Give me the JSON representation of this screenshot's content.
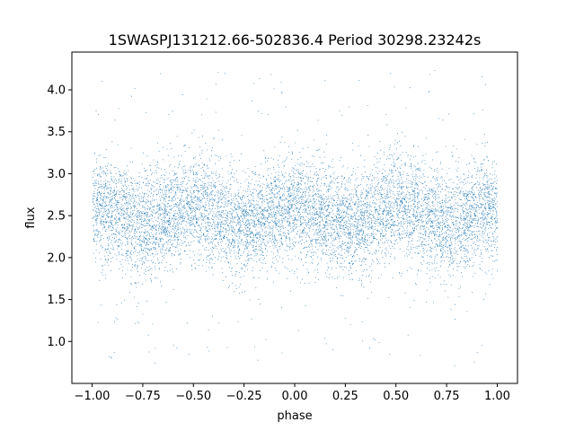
{
  "chart_data": {
    "type": "scatter",
    "title": "1SWASPJ131212.66-502836.4 Period 30298.23242s",
    "xlabel": "phase",
    "ylabel": "flux",
    "xlim": [
      -1.1,
      1.1
    ],
    "ylim": [
      0.5,
      4.45
    ],
    "xticks": [
      -1.0,
      -0.75,
      -0.5,
      -0.25,
      0.0,
      0.25,
      0.5,
      0.75,
      1.0
    ],
    "xtick_labels": [
      "−1.00",
      "−0.75",
      "−0.50",
      "−0.25",
      "0.00",
      "0.25",
      "0.50",
      "0.75",
      "1.00"
    ],
    "yticks": [
      1.0,
      1.5,
      2.0,
      2.5,
      3.0,
      3.5,
      4.0
    ],
    "ytick_labels": [
      "1.0",
      "1.5",
      "2.0",
      "2.5",
      "3.0",
      "3.5",
      "4.0"
    ],
    "grid": false,
    "marker_color": "#1f77b4",
    "series": [
      {
        "phase_range": [
          -1.0,
          1.0
        ],
        "point_count": 9000,
        "mean_flux": 2.5,
        "modulation_amplitude": 0.1,
        "core_flux_range": [
          1.9,
          3.2
        ],
        "outlier_flux_range": [
          0.7,
          4.25
        ]
      }
    ]
  }
}
